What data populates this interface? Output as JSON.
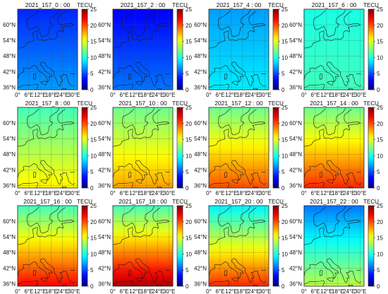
{
  "colorbar": {
    "unit": "TECU",
    "min": 0,
    "max": 25,
    "ticks": [
      "0",
      "5",
      "10",
      "15",
      "20",
      "25"
    ],
    "colormap": "jet"
  },
  "axes": {
    "lat_ticks": [
      "60°N",
      "54°N",
      "48°N",
      "42°N",
      "36°N"
    ],
    "lon_ticks": [
      "0°",
      "6°E",
      "12°E",
      "18°E",
      "24°E",
      "30°E"
    ],
    "lat_values": [
      60,
      54,
      48,
      42,
      36
    ],
    "lon_values": [
      0,
      6,
      12,
      18,
      24,
      30
    ],
    "lat_range": [
      35,
      66
    ],
    "lon_range": [
      0,
      32
    ],
    "grid": true
  },
  "chart_data": {
    "type": "heatmap",
    "x": [
      0,
      6,
      12,
      18,
      24,
      30
    ],
    "y": [
      36,
      42,
      48,
      54,
      60
    ],
    "panels": [
      {
        "title": "2021_157_0 : 00",
        "hour": 0,
        "tec_south": 7,
        "tec_north": 4
      },
      {
        "title": "2021_157_2 : 00",
        "hour": 2,
        "tec_south": 6,
        "tec_north": 3
      },
      {
        "title": "2021_157_4 : 00",
        "hour": 4,
        "tec_south": 9,
        "tec_north": 7
      },
      {
        "title": "2021_157_6 : 00",
        "hour": 6,
        "tec_south": 11,
        "tec_north": 10
      },
      {
        "title": "2021_157_8 : 00",
        "hour": 8,
        "tec_south": 16,
        "tec_north": 11
      },
      {
        "title": "2021_157_10 : 00",
        "hour": 10,
        "tec_south": 18,
        "tec_north": 12
      },
      {
        "title": "2021_157_12 : 00",
        "hour": 12,
        "tec_south": 20,
        "tec_north": 12
      },
      {
        "title": "2021_157_14 : 00",
        "hour": 14,
        "tec_south": 21,
        "tec_north": 12
      },
      {
        "title": "2021_157_16 : 00",
        "hour": 16,
        "tec_south": 22,
        "tec_north": 11
      },
      {
        "title": "2021_157_18 : 00",
        "hour": 18,
        "tec_south": 24,
        "tec_north": 11
      },
      {
        "title": "2021_157_20 : 00",
        "hour": 20,
        "tec_south": 21,
        "tec_north": 9
      },
      {
        "title": "2021_157_22 : 00",
        "hour": 22,
        "tec_south": 14,
        "tec_north": 6
      }
    ]
  }
}
